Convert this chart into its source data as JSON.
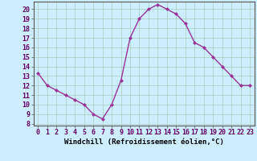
{
  "x": [
    0,
    1,
    2,
    3,
    4,
    5,
    6,
    7,
    8,
    9,
    10,
    11,
    12,
    13,
    14,
    15,
    16,
    17,
    18,
    19,
    20,
    21,
    22,
    23
  ],
  "y": [
    13.3,
    12.0,
    11.5,
    11.0,
    10.5,
    10.0,
    9.0,
    8.5,
    10.0,
    12.5,
    17.0,
    19.0,
    20.0,
    20.5,
    20.0,
    19.5,
    18.5,
    16.5,
    16.0,
    15.0,
    14.0,
    13.0,
    12.0,
    12.0
  ],
  "line_color": "#993399",
  "marker": "D",
  "marker_size": 2.0,
  "line_width": 1.0,
  "bg_color": "#cceeff",
  "grid_color": "#aaccbb",
  "xlabel": "Windchill (Refroidissement éolien,°C)",
  "xlabel_fontsize": 6.5,
  "ylabel_ticks": [
    8,
    9,
    10,
    11,
    12,
    13,
    14,
    15,
    16,
    17,
    18,
    19,
    20
  ],
  "xlim": [
    -0.5,
    23.5
  ],
  "ylim": [
    7.8,
    20.8
  ],
  "tick_fontsize": 6.0,
  "xtick_labels": [
    "0",
    "1",
    "2",
    "3",
    "4",
    "5",
    "6",
    "7",
    "8",
    "9",
    "10",
    "11",
    "12",
    "13",
    "14",
    "15",
    "16",
    "17",
    "18",
    "19",
    "20",
    "21",
    "22",
    "23"
  ]
}
